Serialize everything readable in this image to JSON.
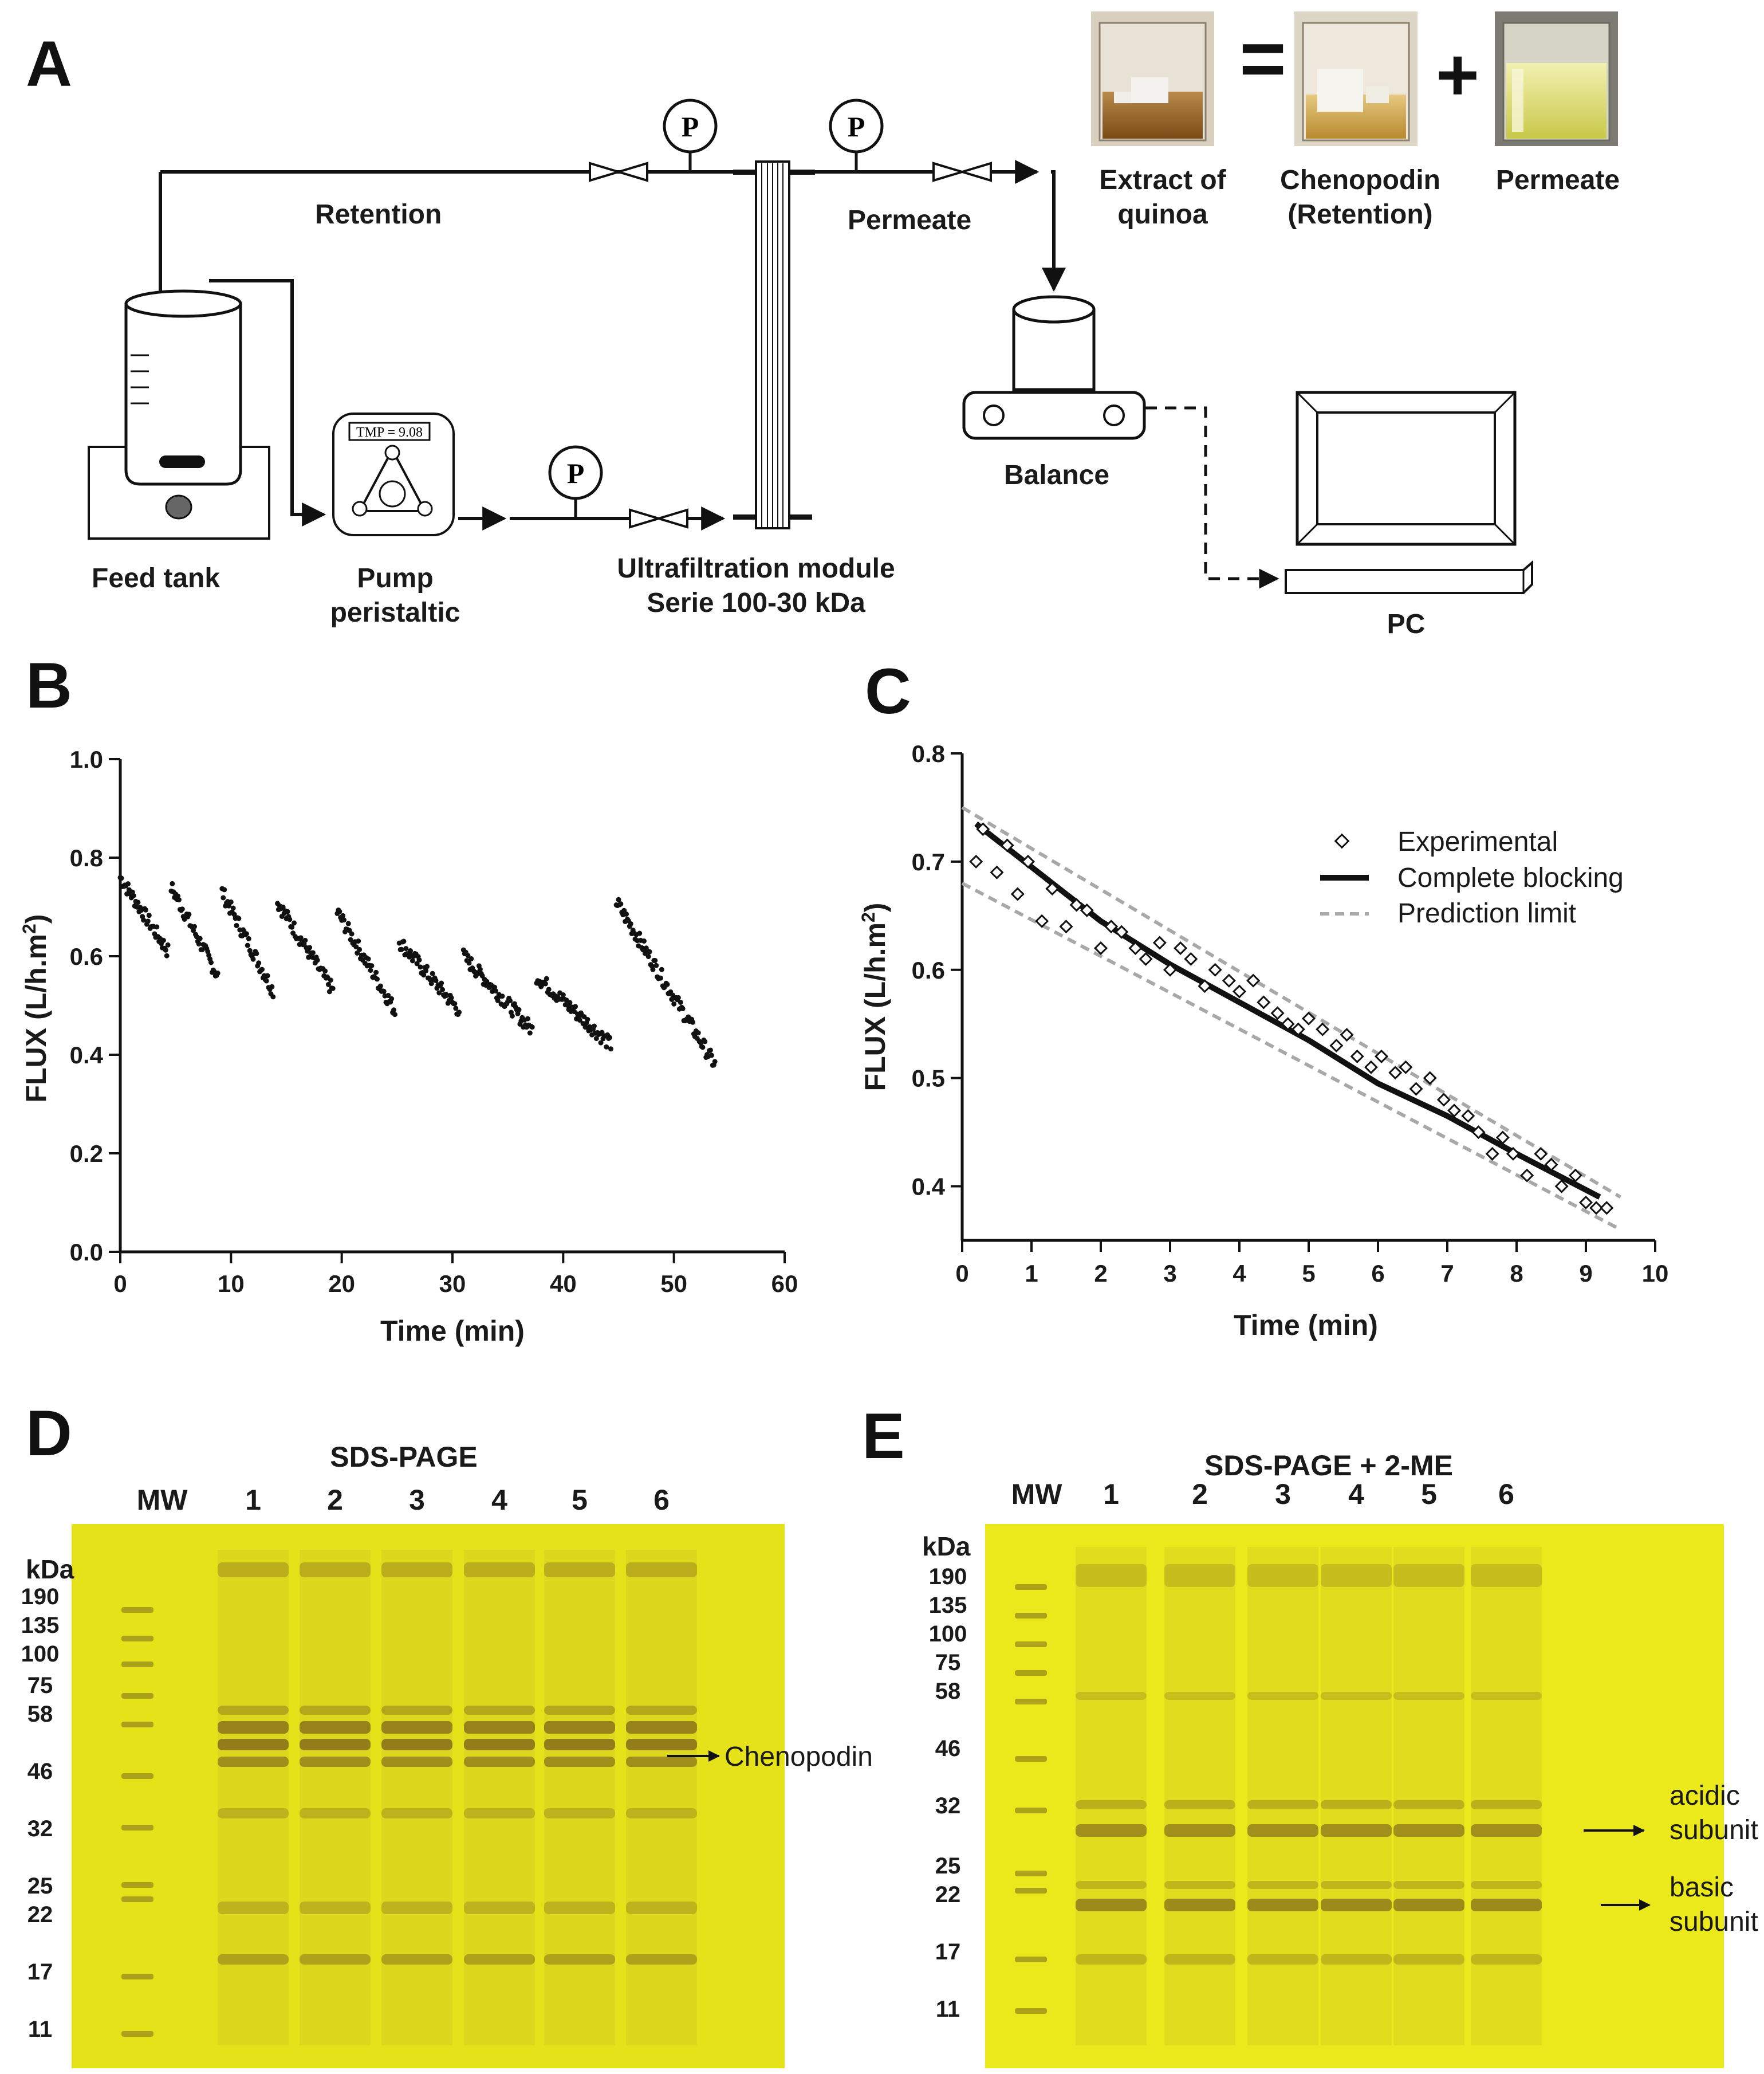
{
  "panel_a": {
    "label": "A",
    "retention": "Retention",
    "permeate": "Permeate",
    "feed_tank": "Feed tank",
    "pump_line1": "Pump",
    "pump_line2": "peristaltic",
    "pump_display": "TMP = 9.08",
    "uf_line1": "Ultrafiltration module",
    "uf_line2": "Serie 100-30 kDa",
    "balance": "Balance",
    "pc": "PC",
    "gauge": "P",
    "extract_line1": "Extract of",
    "extract_line2": "quinoa",
    "eq_sign": "=",
    "plus_sign": "+",
    "cheno_line1": "Chenopodin",
    "cheno_line2": "(Retention)",
    "permeate_photo": "Permeate",
    "colors": {
      "extract": "#8a5a1e",
      "chenopodin": "#c99a3a",
      "permeate_liquid": "#d8d66a"
    }
  },
  "chart_data": [
    {
      "panel": "B",
      "type": "scatter",
      "xlabel": "Time (min)",
      "ylabel": "FLUX (L/h.m2)",
      "xlim": [
        0,
        60
      ],
      "ylim": [
        0,
        1.0
      ],
      "xticks": [
        "0",
        "10",
        "20",
        "30",
        "40",
        "50",
        "60"
      ],
      "yticks": [
        "0.0",
        "0.2",
        "0.4",
        "0.6",
        "0.8",
        "1.0"
      ],
      "segments": [
        {
          "x0": 0.0,
          "x1": 4.3,
          "y0": 0.76,
          "y1": 0.61
        },
        {
          "x0": 4.6,
          "x1": 8.8,
          "y0": 0.74,
          "y1": 0.56
        },
        {
          "x0": 9.2,
          "x1": 13.8,
          "y0": 0.73,
          "y1": 0.53
        },
        {
          "x0": 14.2,
          "x1": 19.2,
          "y0": 0.71,
          "y1": 0.53
        },
        {
          "x0": 19.6,
          "x1": 24.8,
          "y0": 0.69,
          "y1": 0.49
        },
        {
          "x0": 25.2,
          "x1": 30.6,
          "y0": 0.63,
          "y1": 0.49
        },
        {
          "x0": 31.0,
          "x1": 37.2,
          "y0": 0.6,
          "y1": 0.45
        },
        {
          "x0": 37.6,
          "x1": 44.3,
          "y0": 0.56,
          "y1": 0.42
        },
        {
          "x0": 44.8,
          "x1": 53.7,
          "y0": 0.71,
          "y1": 0.38
        }
      ]
    },
    {
      "panel": "C",
      "type": "line",
      "xlabel": "Time (min)",
      "ylabel": "FLUX (L/h.m2)",
      "xlim": [
        0,
        10
      ],
      "ylim": [
        0.35,
        0.8
      ],
      "xticks": [
        "0",
        "1",
        "2",
        "3",
        "4",
        "5",
        "6",
        "7",
        "8",
        "9",
        "10"
      ],
      "yticks": [
        "0.4",
        "0.5",
        "0.6",
        "0.7",
        "0.8"
      ],
      "legend": [
        "Experimental",
        "Complete blocking",
        "Prediction limit"
      ],
      "legend_position": "top-right",
      "series": [
        {
          "name": "Complete blocking",
          "x": [
            0.2,
            1,
            2,
            3,
            4,
            5,
            6,
            7,
            8,
            9.2
          ],
          "y": [
            0.735,
            0.695,
            0.645,
            0.605,
            0.57,
            0.535,
            0.495,
            0.465,
            0.43,
            0.39
          ]
        },
        {
          "name": "Prediction limit upper",
          "x": [
            0,
            9.5
          ],
          "y": [
            0.75,
            0.39
          ]
        },
        {
          "name": "Prediction limit lower",
          "x": [
            0,
            9.5
          ],
          "y": [
            0.68,
            0.36
          ]
        },
        {
          "name": "Experimental",
          "x": [
            0.2,
            0.3,
            0.5,
            0.65,
            0.8,
            0.95,
            1.15,
            1.3,
            1.5,
            1.65,
            1.8,
            2.0,
            2.15,
            2.3,
            2.5,
            2.65,
            2.85,
            3.0,
            3.15,
            3.3,
            3.5,
            3.65,
            3.85,
            4.0,
            4.2,
            4.35,
            4.55,
            4.7,
            4.85,
            5.0,
            5.2,
            5.4,
            5.55,
            5.7,
            5.9,
            6.05,
            6.25,
            6.4,
            6.55,
            6.75,
            6.95,
            7.1,
            7.3,
            7.45,
            7.65,
            7.8,
            7.95,
            8.15,
            8.35,
            8.5,
            8.65,
            8.85,
            9.0,
            9.15,
            9.3
          ],
          "y": [
            0.7,
            0.73,
            0.69,
            0.715,
            0.67,
            0.7,
            0.645,
            0.675,
            0.64,
            0.66,
            0.655,
            0.62,
            0.64,
            0.635,
            0.62,
            0.61,
            0.625,
            0.6,
            0.62,
            0.61,
            0.585,
            0.6,
            0.59,
            0.58,
            0.59,
            0.57,
            0.56,
            0.55,
            0.545,
            0.555,
            0.545,
            0.53,
            0.54,
            0.52,
            0.51,
            0.52,
            0.505,
            0.51,
            0.49,
            0.5,
            0.48,
            0.47,
            0.465,
            0.45,
            0.43,
            0.445,
            0.43,
            0.41,
            0.43,
            0.42,
            0.4,
            0.41,
            0.385,
            0.38,
            0.38
          ]
        }
      ]
    }
  ],
  "panel_d": {
    "label": "D",
    "title": "SDS-PAGE",
    "lanes": [
      "MW",
      "1",
      "2",
      "3",
      "4",
      "5",
      "6"
    ],
    "kda": "kDa",
    "markers": [
      "190",
      "135",
      "100",
      "75",
      "58",
      "46",
      "32",
      "25",
      "22",
      "17",
      "11"
    ],
    "annotation": "Chenopodin",
    "gel_color": "#e6e21a"
  },
  "panel_e": {
    "label": "E",
    "title": "SDS-PAGE  + 2-ME",
    "lanes": [
      "MW",
      "1",
      "2",
      "3",
      "4",
      "5",
      "6"
    ],
    "kda": "kDa",
    "markers": [
      "190",
      "135",
      "100",
      "75",
      "58",
      "46",
      "32",
      "25",
      "22",
      "17",
      "11"
    ],
    "annotation_acidic_1": "acidic",
    "annotation_acidic_2": "subunit",
    "annotation_basic_1": "basic",
    "annotation_basic_2": "subunit",
    "gel_color": "#ebe81c"
  }
}
